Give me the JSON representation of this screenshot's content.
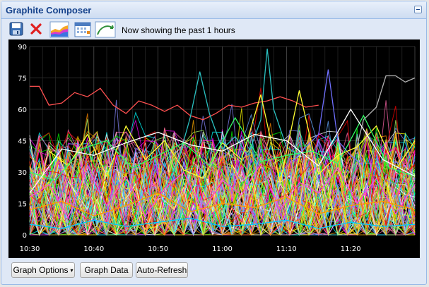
{
  "window": {
    "title": "Graphite Composer"
  },
  "toolbar": {
    "icons": [
      "save-icon",
      "delete-icon",
      "graph-options-icon",
      "calendar-icon",
      "recent-data-icon"
    ],
    "status": "Now showing the past 1 hours"
  },
  "bottom_buttons": {
    "graph_options": "Graph Options",
    "graph_data": "Graph Data",
    "auto_refresh": "Auto-Refresh"
  },
  "chart_data": {
    "type": "line",
    "title": "",
    "xlabel": "",
    "ylabel": "",
    "x_ticks": [
      "10:30",
      "10:40",
      "10:50",
      "11:00",
      "11:10",
      "11:20"
    ],
    "x_tick_minutes": [
      0,
      10,
      20,
      30,
      40,
      50
    ],
    "xlim": [
      0,
      60
    ],
    "y_ticks": [
      "0",
      "15",
      "30",
      "45",
      "60",
      "75",
      "90"
    ],
    "ylim": [
      0,
      90
    ],
    "grid": true,
    "background": "#000000",
    "palette": [
      "#ff0000",
      "#ffff00",
      "#00ff00",
      "#ff00ff",
      "#00ffff",
      "#ff8800",
      "#8888ff",
      "#ffffff",
      "#ff66aa",
      "#aaff66",
      "#66aaff",
      "#ffaa00"
    ],
    "series": [
      {
        "color": "#ff5050",
        "x": [
          0,
          1.5,
          3,
          5,
          7,
          9,
          11,
          13,
          15,
          17,
          19,
          21,
          23,
          25,
          27,
          29,
          31,
          33,
          35,
          37,
          39,
          41,
          43,
          45
        ],
        "values": [
          71,
          71,
          62,
          63,
          68,
          66,
          70,
          62,
          58,
          64,
          62,
          59,
          62,
          57,
          55,
          58,
          62,
          61,
          63,
          64,
          66,
          64,
          61,
          62
        ]
      },
      {
        "color": "#2ac0c0",
        "x": [
          21,
          23,
          25,
          26.5,
          28,
          30,
          32,
          34,
          36,
          37,
          38,
          40,
          42
        ],
        "values": [
          22,
          34,
          56,
          78,
          58,
          41,
          47,
          38,
          55,
          89,
          60,
          42,
          38
        ]
      },
      {
        "color": "#b0b0b0",
        "x": [
          50,
          52,
          54,
          55.5,
          57,
          58.5,
          60
        ],
        "values": [
          30,
          55,
          61,
          76,
          76,
          73,
          75
        ]
      },
      {
        "color": "#7070ff",
        "x": [
          41,
          43,
          45,
          46.5,
          48,
          50,
          52
        ],
        "values": [
          35,
          42,
          48,
          79,
          45,
          38,
          33
        ]
      },
      {
        "color": "#ffff33",
        "x": [
          3,
          6,
          9,
          12,
          15,
          18,
          21,
          24,
          27,
          30,
          33,
          36,
          39,
          42,
          45,
          48,
          51,
          54,
          57,
          60
        ],
        "values": [
          40,
          33,
          48,
          28,
          52,
          36,
          45,
          31,
          27,
          44,
          36,
          67,
          25,
          69,
          29,
          38,
          42,
          52,
          31,
          45
        ]
      },
      {
        "color": "#33ff66",
        "x": [
          0,
          4,
          8,
          12,
          16,
          20,
          24,
          28,
          32,
          36,
          40,
          44,
          48,
          52,
          56,
          60
        ],
        "values": [
          30,
          26,
          41,
          45,
          32,
          38,
          44,
          33,
          56,
          35,
          38,
          40,
          34,
          57,
          32,
          28
        ]
      },
      {
        "color": "#ff44dd",
        "x": [
          0,
          3,
          6,
          9,
          12,
          15,
          18,
          21,
          24,
          27,
          30,
          33,
          36,
          39,
          42,
          45,
          48,
          51,
          54,
          57,
          60
        ],
        "values": [
          18,
          24,
          8,
          33,
          14,
          28,
          9,
          22,
          30,
          11,
          26,
          19,
          34,
          12,
          25,
          20,
          32,
          15,
          27,
          10,
          24
        ]
      },
      {
        "color": "#ffffff",
        "x": [
          0,
          5,
          10,
          15,
          20,
          25,
          30,
          35,
          40,
          45,
          50,
          55,
          60
        ],
        "values": [
          20,
          41,
          38,
          44,
          49,
          43,
          40,
          48,
          45,
          33,
          60,
          36,
          28
        ]
      },
      {
        "color": "#ff9900",
        "x": [
          0,
          5,
          10,
          15,
          20,
          25,
          30,
          35,
          40,
          45,
          50,
          55,
          60
        ],
        "values": [
          12,
          16,
          9,
          14,
          20,
          11,
          15,
          13,
          18,
          10,
          14,
          16,
          12
        ]
      },
      {
        "color": "#00ccff",
        "x": [
          0,
          5,
          10,
          15,
          20,
          25,
          30,
          35,
          40,
          45,
          50,
          55,
          60
        ],
        "values": [
          5,
          3,
          7,
          4,
          6,
          8,
          4,
          5,
          7,
          3,
          6,
          4,
          5
        ]
      }
    ],
    "noise": {
      "count": 110,
      "points": 40,
      "ymax": 45
    }
  }
}
